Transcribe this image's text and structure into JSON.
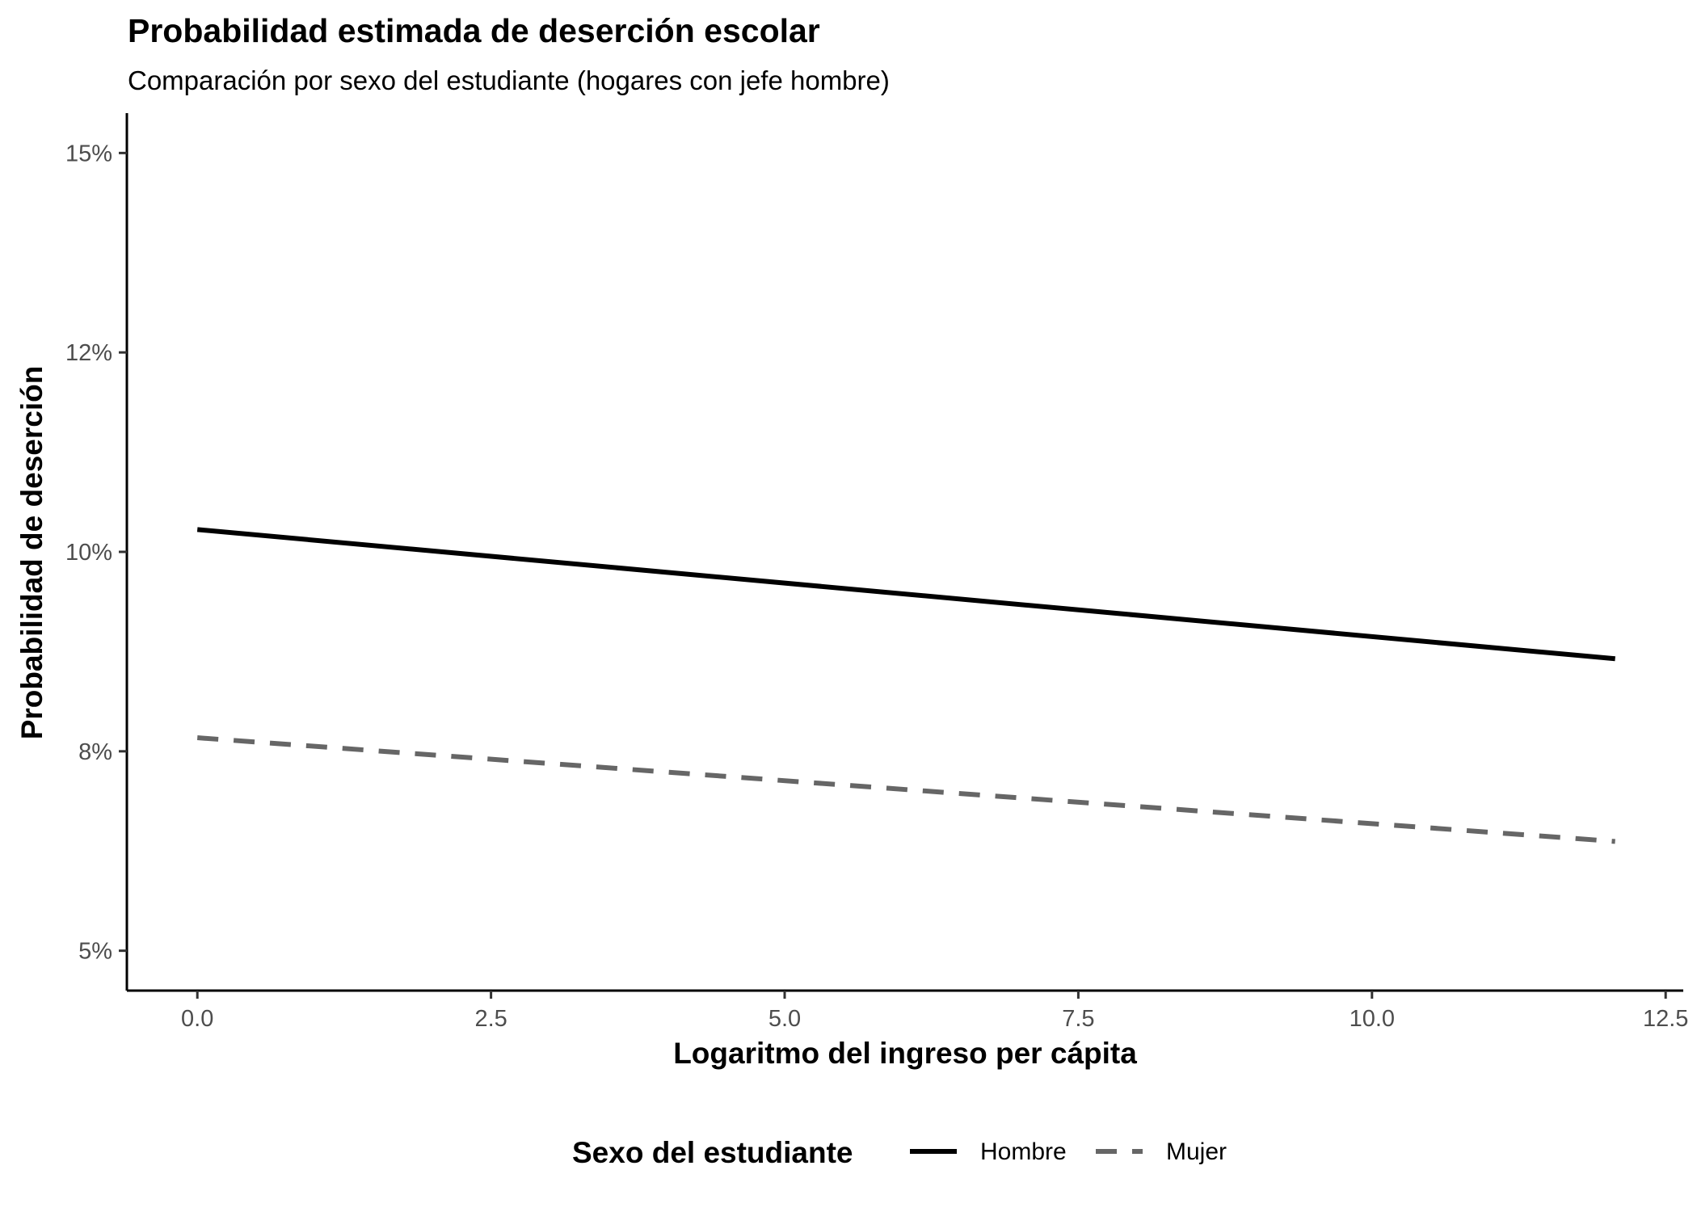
{
  "chart_data": {
    "type": "line",
    "title": "Probabilidad estimada de deserción escolar",
    "subtitle": "Comparación por sexo del estudiante (hogares con jefe hombre)",
    "xlabel": "Logaritmo del ingreso per cápita",
    "ylabel": "Probabilidad de deserción",
    "xlim": [
      -0.6,
      12.65
    ],
    "ylim": [
      0.045,
      0.155
    ],
    "x_ticks": [
      0,
      2.5,
      5,
      7.5,
      10,
      12.5
    ],
    "x_tick_labels": [
      "0.0",
      "2.5",
      "5.0",
      "7.5",
      "10.0",
      "12.5"
    ],
    "y_ticks": [
      0.05,
      0.075,
      0.1,
      0.125,
      0.15
    ],
    "y_tick_labels": [
      "5%",
      "8%",
      "10%",
      "12%",
      "15%"
    ],
    "grid": false,
    "legend_position": "bottom",
    "legend_title": "Sexo del estudiante",
    "series": [
      {
        "name": "Hombre",
        "x": [
          0,
          12.07
        ],
        "values": [
          0.1028,
          0.0866
        ],
        "color": "#000000",
        "linestyle": "solid"
      },
      {
        "name": "Mujer",
        "x": [
          0,
          12.07
        ],
        "values": [
          0.0767,
          0.0637
        ],
        "color": "#666666",
        "linestyle": "dashed"
      }
    ]
  }
}
